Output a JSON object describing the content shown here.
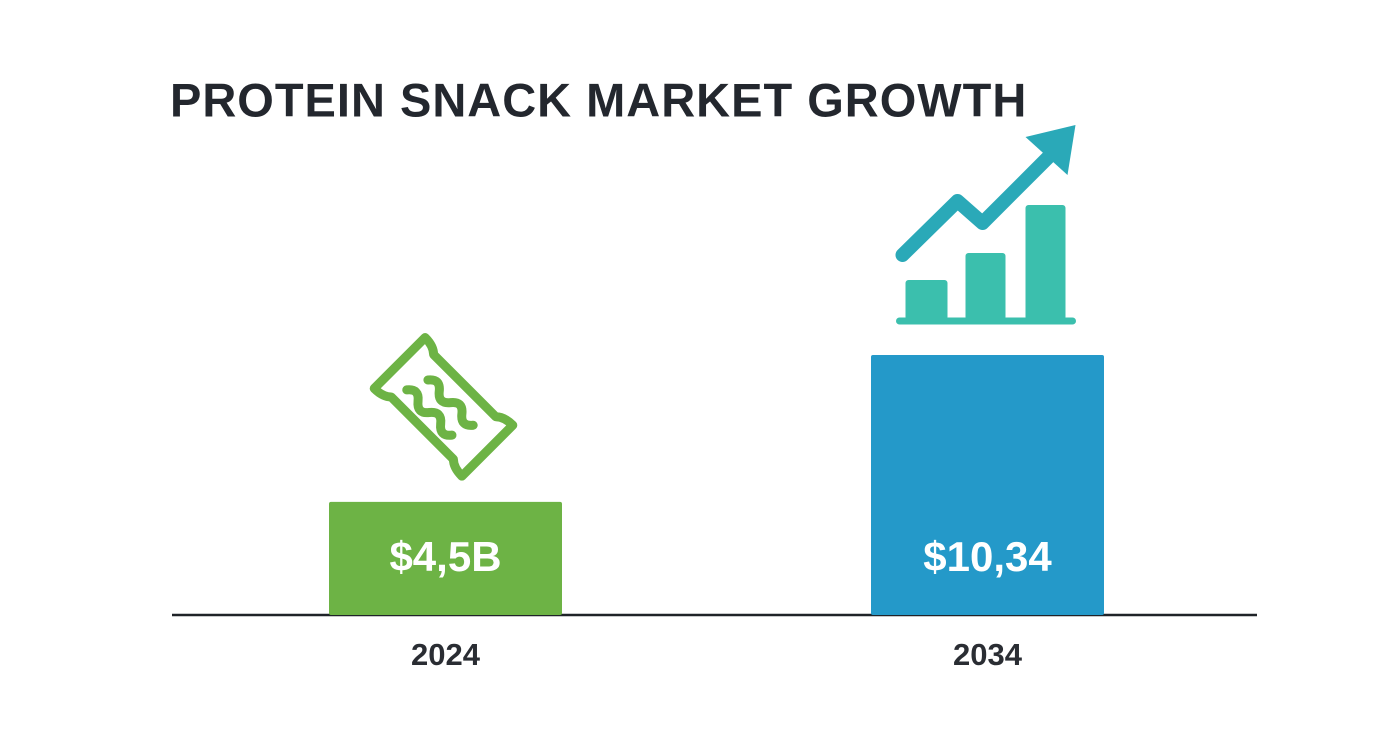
{
  "chart_data": {
    "type": "bar",
    "title": "PROTEIN SNACK MARKET GROWTH",
    "categories": [
      "2024",
      "2034"
    ],
    "values": [
      4.5,
      10.34
    ],
    "value_labels": [
      "$4,5B",
      "$10,34"
    ],
    "colors": [
      "#6db345",
      "#2499c9"
    ]
  }
}
